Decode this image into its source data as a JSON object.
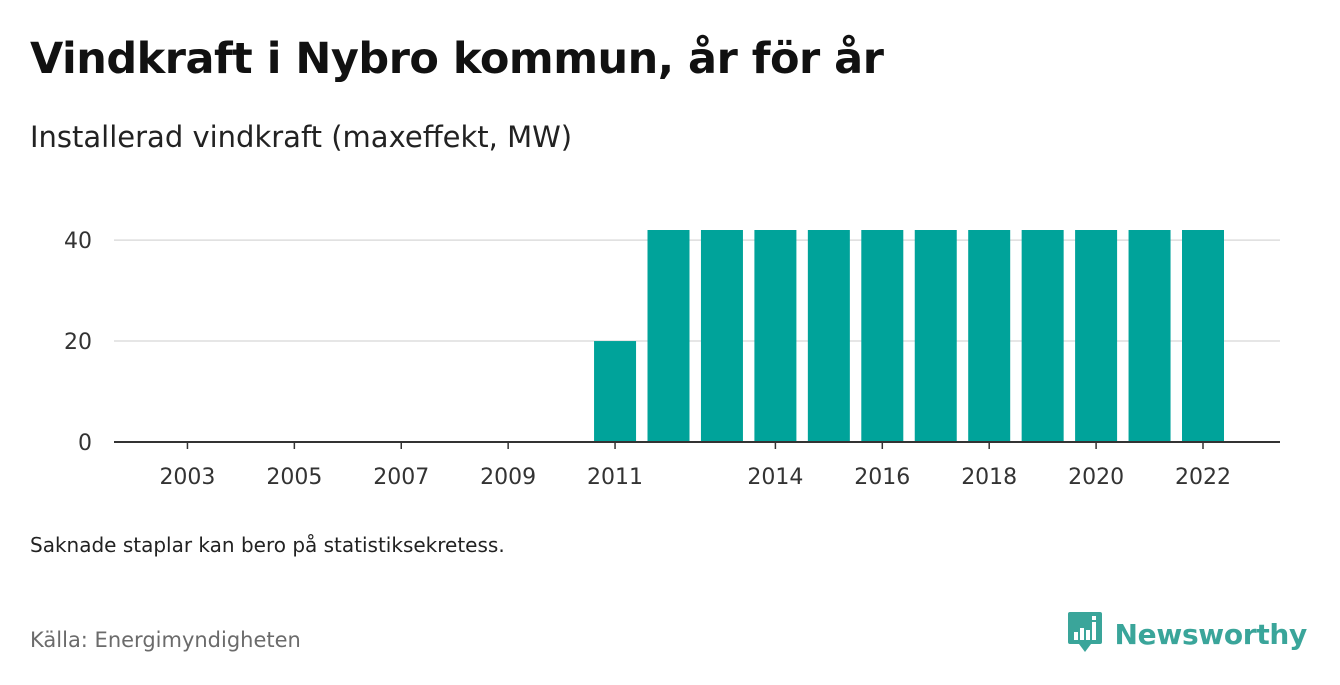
{
  "header": {
    "title": "Vindkraft i Nybro kommun, år för år",
    "subtitle": "Installerad vindkraft (maxeffekt, MW)"
  },
  "footer": {
    "note": "Saknade staplar kan bero på statistiksekretess.",
    "source": "Källa: Energimyndigheten",
    "brand": "Newsworthy"
  },
  "colors": {
    "bar": "#00a39a",
    "gridline": "#dddddd",
    "axis": "#333333",
    "brand": "#3aa59a"
  },
  "icons": {
    "brand_logo": "newsworthy-logo-icon"
  },
  "chart_data": {
    "type": "bar",
    "categories": [
      "2002",
      "2003",
      "2004",
      "2005",
      "2006",
      "2007",
      "2008",
      "2009",
      "2010",
      "2011",
      "2012",
      "2013",
      "2014",
      "2015",
      "2016",
      "2017",
      "2018",
      "2019",
      "2020",
      "2021",
      "2022"
    ],
    "x_tick_labels": [
      "2003",
      "2005",
      "2007",
      "2009",
      "2011",
      "2014",
      "2016",
      "2018",
      "2020",
      "2022"
    ],
    "values": [
      null,
      null,
      null,
      null,
      null,
      null,
      null,
      null,
      null,
      20,
      42,
      42,
      42,
      42,
      42,
      42,
      42,
      42,
      42,
      42,
      42
    ],
    "ylim": [
      0,
      42
    ],
    "y_ticks": [
      0,
      20,
      40
    ],
    "grid": true
  }
}
